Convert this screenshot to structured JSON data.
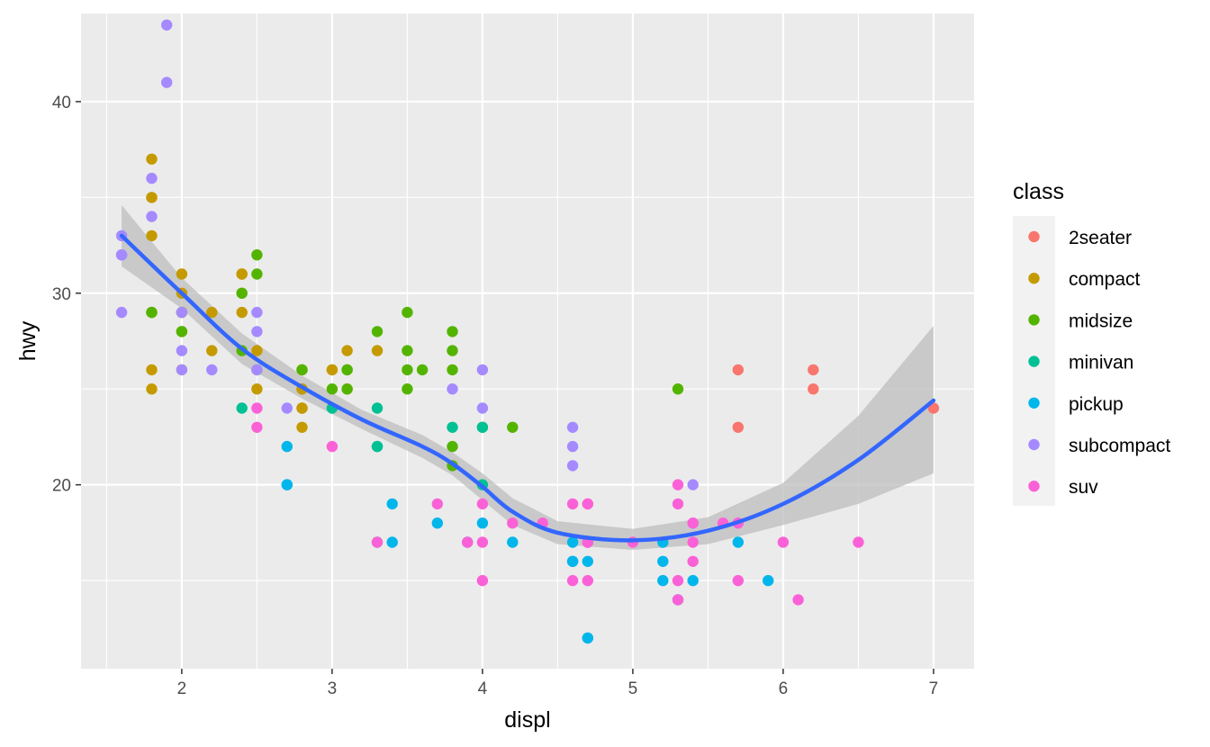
{
  "chart_data": {
    "type": "scatter",
    "xlabel": "displ",
    "ylabel": "hwy",
    "xlim": [
      1.33,
      7.27
    ],
    "ylim": [
      10.4,
      44.6
    ],
    "x_ticks": [
      2,
      3,
      4,
      5,
      6,
      7
    ],
    "y_ticks": [
      20,
      30,
      40
    ],
    "grid": true,
    "legend": {
      "title": "class",
      "position": "right"
    },
    "colors": {
      "2seater": "#F8766D",
      "compact": "#C49A00",
      "midsize": "#53B400",
      "minivan": "#00C094",
      "pickup": "#00B6EB",
      "subcompact": "#A58AFF",
      "suv": "#FB61D7",
      "smooth_line": "#3366FF",
      "ribbon": "#BEBEBE",
      "panel": "#EBEBEB"
    },
    "series": [
      {
        "name": "2seater",
        "points": [
          [
            5.7,
            26
          ],
          [
            5.7,
            23
          ],
          [
            6.2,
            26
          ],
          [
            6.2,
            25
          ],
          [
            7.0,
            24
          ]
        ]
      },
      {
        "name": "compact",
        "points": [
          [
            1.8,
            29
          ],
          [
            1.8,
            29
          ],
          [
            2.0,
            31
          ],
          [
            2.0,
            30
          ],
          [
            2.8,
            26
          ],
          [
            2.8,
            26
          ],
          [
            3.1,
            27
          ],
          [
            1.8,
            26
          ],
          [
            1.8,
            25
          ],
          [
            2.0,
            28
          ],
          [
            2.0,
            28
          ],
          [
            2.8,
            25
          ],
          [
            2.8,
            25
          ],
          [
            3.1,
            25
          ],
          [
            2.2,
            29
          ],
          [
            2.2,
            27
          ],
          [
            2.4,
            31
          ],
          [
            2.4,
            31
          ],
          [
            3.0,
            26
          ],
          [
            3.0,
            26
          ],
          [
            3.3,
            27
          ],
          [
            2.4,
            30
          ],
          [
            2.4,
            29
          ],
          [
            2.5,
            27
          ],
          [
            2.5,
            25
          ],
          [
            2.8,
            24
          ],
          [
            2.8,
            23
          ],
          [
            1.8,
            33
          ],
          [
            1.8,
            35
          ],
          [
            1.8,
            37
          ],
          [
            1.8,
            35
          ],
          [
            2.0,
            29
          ],
          [
            2.0,
            26
          ],
          [
            2.8,
            24
          ]
        ]
      },
      {
        "name": "midsize",
        "points": [
          [
            2.8,
            26
          ],
          [
            3.1,
            26
          ],
          [
            4.2,
            23
          ],
          [
            1.8,
            29
          ],
          [
            2.0,
            28
          ],
          [
            2.0,
            29
          ],
          [
            2.4,
            27
          ],
          [
            2.4,
            30
          ],
          [
            2.5,
            26
          ],
          [
            2.5,
            32
          ],
          [
            2.5,
            31
          ],
          [
            3.5,
            29
          ],
          [
            3.5,
            27
          ],
          [
            3.3,
            28
          ],
          [
            3.5,
            26
          ],
          [
            3.0,
            25
          ],
          [
            3.1,
            26
          ],
          [
            3.8,
            27
          ],
          [
            3.8,
            28
          ],
          [
            3.8,
            26
          ],
          [
            3.1,
            25
          ],
          [
            3.5,
            25
          ],
          [
            3.6,
            26
          ],
          [
            5.3,
            25
          ],
          [
            3.8,
            22
          ],
          [
            3.8,
            21
          ],
          [
            4.0,
            23
          ]
        ]
      },
      {
        "name": "minivan",
        "points": [
          [
            2.4,
            24
          ],
          [
            3.0,
            24
          ],
          [
            3.3,
            22
          ],
          [
            3.3,
            24
          ],
          [
            3.8,
            23
          ],
          [
            4.0,
            20
          ],
          [
            3.3,
            17
          ],
          [
            3.3,
            22
          ],
          [
            4.0,
            23
          ]
        ]
      },
      {
        "name": "pickup",
        "points": [
          [
            2.7,
            22
          ],
          [
            2.7,
            20
          ],
          [
            3.4,
            19
          ],
          [
            3.4,
            17
          ],
          [
            3.7,
            18
          ],
          [
            3.9,
            17
          ],
          [
            4.0,
            18
          ],
          [
            4.2,
            17
          ],
          [
            4.6,
            17
          ],
          [
            4.6,
            16
          ],
          [
            4.7,
            16
          ],
          [
            4.7,
            12
          ],
          [
            5.2,
            17
          ],
          [
            5.2,
            16
          ],
          [
            5.7,
            17
          ],
          [
            5.9,
            15
          ],
          [
            4.7,
            17
          ],
          [
            4.7,
            12
          ],
          [
            5.2,
            15
          ],
          [
            5.4,
            15
          ],
          [
            4.6,
            16
          ],
          [
            5.3,
            14
          ],
          [
            2.7,
            20
          ]
        ]
      },
      {
        "name": "subcompact",
        "points": [
          [
            1.6,
            33
          ],
          [
            1.6,
            32
          ],
          [
            1.6,
            32
          ],
          [
            1.6,
            29
          ],
          [
            1.6,
            32
          ],
          [
            1.8,
            34
          ],
          [
            1.8,
            36
          ],
          [
            1.9,
            44
          ],
          [
            1.9,
            41
          ],
          [
            2.0,
            29
          ],
          [
            2.0,
            26
          ],
          [
            2.0,
            27
          ],
          [
            2.2,
            26
          ],
          [
            2.5,
            26
          ],
          [
            2.5,
            28
          ],
          [
            2.5,
            29
          ],
          [
            2.7,
            24
          ],
          [
            3.8,
            25
          ],
          [
            4.0,
            24
          ],
          [
            4.0,
            26
          ],
          [
            4.6,
            23
          ],
          [
            4.6,
            22
          ],
          [
            4.6,
            21
          ],
          [
            5.4,
            20
          ],
          [
            5.4,
            18
          ]
        ]
      },
      {
        "name": "suv",
        "points": [
          [
            4.2,
            18
          ],
          [
            4.7,
            17
          ],
          [
            4.7,
            19
          ],
          [
            5.3,
            20
          ],
          [
            5.3,
            19
          ],
          [
            5.3,
            15
          ],
          [
            5.7,
            15
          ],
          [
            6.5,
            17
          ],
          [
            6.1,
            14
          ],
          [
            4.7,
            17
          ],
          [
            4.7,
            19
          ],
          [
            5.4,
            16
          ],
          [
            4.0,
            19
          ],
          [
            4.0,
            17
          ],
          [
            4.0,
            15
          ],
          [
            4.6,
            19
          ],
          [
            4.6,
            15
          ],
          [
            5.4,
            17
          ],
          [
            5.3,
            14
          ],
          [
            3.7,
            19
          ],
          [
            3.9,
            17
          ],
          [
            4.4,
            18
          ],
          [
            5.0,
            17
          ],
          [
            5.6,
            18
          ],
          [
            2.5,
            24
          ],
          [
            2.5,
            23
          ],
          [
            3.0,
            22
          ],
          [
            3.3,
            17
          ],
          [
            4.7,
            15
          ],
          [
            5.7,
            18
          ],
          [
            6.0,
            17
          ],
          [
            5.4,
            18
          ]
        ]
      }
    ],
    "smooth": {
      "method": "loess",
      "x": [
        1.6,
        2.0,
        2.4,
        2.8,
        3.2,
        3.6,
        3.8,
        4.0,
        4.2,
        4.5,
        5.0,
        5.5,
        6.0,
        6.5,
        7.0
      ],
      "y": [
        33.0,
        30.0,
        27.1,
        25.1,
        23.4,
        22.0,
        21.1,
        19.9,
        18.6,
        17.5,
        17.1,
        17.6,
        19.0,
        21.3,
        24.4
      ],
      "ymin": [
        31.4,
        29.2,
        26.3,
        24.5,
        22.9,
        21.4,
        20.5,
        19.2,
        17.9,
        16.9,
        16.6,
        16.9,
        17.9,
        19.0,
        20.6
      ],
      "ymax": [
        34.6,
        30.8,
        27.9,
        25.7,
        23.9,
        22.6,
        21.7,
        20.6,
        19.3,
        18.1,
        17.7,
        18.3,
        20.1,
        23.6,
        28.3
      ]
    }
  }
}
